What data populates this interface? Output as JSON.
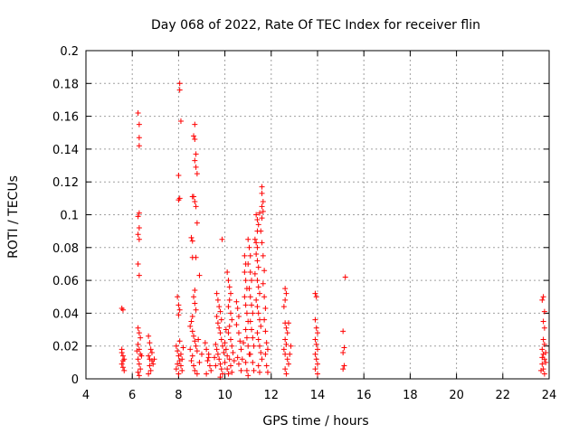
{
  "chart_data": {
    "type": "scatter",
    "title": "Day 068 of 2022, Rate Of TEC Index for receiver flin",
    "xlabel": "GPS time / hours",
    "ylabel": "ROTI / TECUs",
    "xlim": [
      4,
      24
    ],
    "ylim": [
      0,
      0.2
    ],
    "xticks": [
      "4",
      "6",
      "8",
      "10",
      "12",
      "14",
      "16",
      "18",
      "20",
      "22",
      "24"
    ],
    "yticks": [
      "0",
      "0.02",
      "0.04",
      "0.06",
      "0.08",
      "0.1",
      "0.12",
      "0.14",
      "0.16",
      "0.18",
      "0.2"
    ],
    "grid": true,
    "marker": "+",
    "color": "#ff0000",
    "series": [
      {
        "points": [
          [
            5.55,
            0.043
          ],
          [
            5.6,
            0.042
          ],
          [
            5.55,
            0.016
          ],
          [
            5.6,
            0.014
          ],
          [
            5.65,
            0.012
          ],
          [
            5.55,
            0.009
          ],
          [
            5.6,
            0.007
          ],
          [
            5.65,
            0.005
          ],
          [
            5.55,
            0.018
          ],
          [
            5.6,
            0.011
          ],
          [
            6.25,
            0.162
          ],
          [
            6.3,
            0.155
          ],
          [
            6.3,
            0.147
          ],
          [
            6.3,
            0.142
          ],
          [
            6.3,
            0.101
          ],
          [
            6.25,
            0.099
          ],
          [
            6.3,
            0.092
          ],
          [
            6.25,
            0.088
          ],
          [
            6.3,
            0.085
          ],
          [
            6.25,
            0.07
          ],
          [
            6.3,
            0.063
          ],
          [
            6.25,
            0.031
          ],
          [
            6.3,
            0.028
          ],
          [
            6.35,
            0.025
          ],
          [
            6.25,
            0.021
          ],
          [
            6.3,
            0.018
          ],
          [
            6.35,
            0.015
          ],
          [
            6.25,
            0.012
          ],
          [
            6.3,
            0.009
          ],
          [
            6.35,
            0.006
          ],
          [
            6.25,
            0.004
          ],
          [
            6.3,
            0.002
          ],
          [
            6.4,
            0.014
          ],
          [
            6.2,
            0.017
          ],
          [
            6.7,
            0.026
          ],
          [
            6.75,
            0.022
          ],
          [
            6.8,
            0.018
          ],
          [
            6.7,
            0.014
          ],
          [
            6.85,
            0.011
          ],
          [
            6.75,
            0.008
          ],
          [
            6.8,
            0.005
          ],
          [
            6.9,
            0.009
          ],
          [
            6.95,
            0.012
          ],
          [
            6.7,
            0.003
          ],
          [
            6.85,
            0.016
          ],
          [
            6.75,
            0.012
          ],
          [
            8.05,
            0.18
          ],
          [
            8.05,
            0.176
          ],
          [
            8.1,
            0.157
          ],
          [
            8.0,
            0.124
          ],
          [
            8.05,
            0.11
          ],
          [
            8.0,
            0.109
          ],
          [
            7.95,
            0.05
          ],
          [
            8.0,
            0.045
          ],
          [
            8.05,
            0.042
          ],
          [
            8.0,
            0.039
          ],
          [
            7.9,
            0.02
          ],
          [
            7.95,
            0.017
          ],
          [
            8.0,
            0.014
          ],
          [
            8.05,
            0.011
          ],
          [
            8.1,
            0.008
          ],
          [
            8.15,
            0.005
          ],
          [
            8.0,
            0.003
          ],
          [
            7.95,
            0.009
          ],
          [
            8.1,
            0.015
          ],
          [
            8.2,
            0.019
          ],
          [
            8.05,
            0.023
          ],
          [
            8.15,
            0.012
          ],
          [
            7.9,
            0.006
          ],
          [
            8.7,
            0.155
          ],
          [
            8.65,
            0.148
          ],
          [
            8.7,
            0.146
          ],
          [
            8.75,
            0.137
          ],
          [
            8.7,
            0.133
          ],
          [
            8.75,
            0.129
          ],
          [
            8.8,
            0.125
          ],
          [
            8.65,
            0.111
          ],
          [
            8.6,
            0.111
          ],
          [
            8.7,
            0.108
          ],
          [
            8.75,
            0.105
          ],
          [
            8.8,
            0.095
          ],
          [
            8.55,
            0.086
          ],
          [
            8.6,
            0.084
          ],
          [
            8.6,
            0.074
          ],
          [
            8.75,
            0.074
          ],
          [
            8.9,
            0.063
          ],
          [
            8.7,
            0.054
          ],
          [
            8.65,
            0.05
          ],
          [
            8.7,
            0.046
          ],
          [
            8.75,
            0.042
          ],
          [
            8.6,
            0.038
          ],
          [
            8.55,
            0.035
          ],
          [
            8.5,
            0.032
          ],
          [
            8.6,
            0.029
          ],
          [
            8.65,
            0.026
          ],
          [
            8.7,
            0.023
          ],
          [
            8.75,
            0.02
          ],
          [
            8.8,
            0.017
          ],
          [
            8.6,
            0.014
          ],
          [
            8.55,
            0.011
          ],
          [
            8.65,
            0.008
          ],
          [
            8.7,
            0.005
          ],
          [
            8.8,
            0.003
          ],
          [
            8.9,
            0.01
          ],
          [
            9.0,
            0.015
          ],
          [
            8.5,
            0.018
          ],
          [
            8.85,
            0.024
          ],
          [
            9.15,
            0.022
          ],
          [
            9.2,
            0.018
          ],
          [
            9.3,
            0.015
          ],
          [
            9.25,
            0.011
          ],
          [
            9.35,
            0.008
          ],
          [
            9.4,
            0.005
          ],
          [
            9.2,
            0.003
          ],
          [
            9.3,
            0.013
          ],
          [
            9.65,
            0.052
          ],
          [
            9.7,
            0.048
          ],
          [
            9.75,
            0.044
          ],
          [
            9.8,
            0.041
          ],
          [
            9.65,
            0.038
          ],
          [
            9.7,
            0.034
          ],
          [
            9.75,
            0.031
          ],
          [
            9.8,
            0.028
          ],
          [
            9.85,
            0.024
          ],
          [
            9.6,
            0.021
          ],
          [
            9.65,
            0.018
          ],
          [
            9.7,
            0.015
          ],
          [
            9.75,
            0.012
          ],
          [
            9.8,
            0.009
          ],
          [
            9.85,
            0.006
          ],
          [
            9.9,
            0.003
          ],
          [
            9.6,
            0.008
          ],
          [
            9.95,
            0.016
          ],
          [
            9.55,
            0.013
          ],
          [
            9.9,
            0.02
          ],
          [
            9.85,
            0.036
          ],
          [
            9.8,
            0.001
          ],
          [
            9.88,
            0.085
          ],
          [
            10.0,
            0.022
          ],
          [
            10.05,
            0.018
          ],
          [
            10.1,
            0.014
          ],
          [
            10.0,
            0.01
          ],
          [
            10.1,
            0.006
          ],
          [
            10.15,
            0.003
          ],
          [
            10.05,
            0.03
          ],
          [
            10.1,
            0.065
          ],
          [
            10.15,
            0.06
          ],
          [
            10.2,
            0.056
          ],
          [
            10.25,
            0.052
          ],
          [
            10.2,
            0.048
          ],
          [
            10.15,
            0.044
          ],
          [
            10.25,
            0.04
          ],
          [
            10.3,
            0.036
          ],
          [
            10.2,
            0.032
          ],
          [
            10.15,
            0.028
          ],
          [
            10.25,
            0.024
          ],
          [
            10.3,
            0.02
          ],
          [
            10.35,
            0.016
          ],
          [
            10.2,
            0.012
          ],
          [
            10.25,
            0.008
          ],
          [
            10.3,
            0.004
          ],
          [
            10.4,
            0.011
          ],
          [
            10.5,
            0.047
          ],
          [
            10.55,
            0.043
          ],
          [
            10.6,
            0.038
          ],
          [
            10.5,
            0.033
          ],
          [
            10.6,
            0.028
          ],
          [
            10.65,
            0.023
          ],
          [
            10.7,
            0.018
          ],
          [
            10.55,
            0.013
          ],
          [
            10.6,
            0.009
          ],
          [
            10.7,
            0.005
          ],
          [
            10.75,
            0.012
          ],
          [
            10.8,
            0.022
          ],
          [
            10.85,
            0.075
          ],
          [
            10.9,
            0.07
          ],
          [
            10.85,
            0.065
          ],
          [
            10.9,
            0.06
          ],
          [
            10.95,
            0.055
          ],
          [
            10.85,
            0.05
          ],
          [
            10.9,
            0.045
          ],
          [
            10.95,
            0.04
          ],
          [
            11.0,
            0.035
          ],
          [
            10.9,
            0.03
          ],
          [
            10.95,
            0.025
          ],
          [
            11.0,
            0.02
          ],
          [
            11.05,
            0.015
          ],
          [
            10.9,
            0.01
          ],
          [
            10.95,
            0.005
          ],
          [
            11.0,
            0.002
          ],
          [
            11.0,
            0.085
          ],
          [
            11.05,
            0.08
          ],
          [
            11.1,
            0.075
          ],
          [
            11.0,
            0.07
          ],
          [
            11.1,
            0.065
          ],
          [
            11.15,
            0.06
          ],
          [
            11.05,
            0.055
          ],
          [
            11.1,
            0.05
          ],
          [
            11.15,
            0.045
          ],
          [
            11.2,
            0.04
          ],
          [
            11.1,
            0.035
          ],
          [
            11.15,
            0.03
          ],
          [
            11.2,
            0.025
          ],
          [
            11.25,
            0.02
          ],
          [
            11.1,
            0.015
          ],
          [
            11.2,
            0.01
          ],
          [
            11.25,
            0.005
          ],
          [
            11.3,
            0.085
          ],
          [
            11.35,
            0.083
          ],
          [
            11.4,
            0.08
          ],
          [
            11.35,
            0.076
          ],
          [
            11.4,
            0.072
          ],
          [
            11.45,
            0.068
          ],
          [
            11.3,
            0.064
          ],
          [
            11.4,
            0.06
          ],
          [
            11.45,
            0.056
          ],
          [
            11.5,
            0.052
          ],
          [
            11.35,
            0.048
          ],
          [
            11.4,
            0.044
          ],
          [
            11.45,
            0.04
          ],
          [
            11.5,
            0.036
          ],
          [
            11.55,
            0.032
          ],
          [
            11.4,
            0.028
          ],
          [
            11.45,
            0.024
          ],
          [
            11.5,
            0.02
          ],
          [
            11.55,
            0.016
          ],
          [
            11.6,
            0.012
          ],
          [
            11.45,
            0.008
          ],
          [
            11.5,
            0.004
          ],
          [
            11.35,
            0.1
          ],
          [
            11.4,
            0.097
          ],
          [
            11.45,
            0.094
          ],
          [
            11.4,
            0.09
          ],
          [
            11.5,
            0.101
          ],
          [
            11.6,
            0.117
          ],
          [
            11.6,
            0.113
          ],
          [
            11.65,
            0.108
          ],
          [
            11.6,
            0.105
          ],
          [
            11.65,
            0.102
          ],
          [
            11.6,
            0.098
          ],
          [
            11.55,
            0.09
          ],
          [
            11.6,
            0.083
          ],
          [
            11.65,
            0.075
          ],
          [
            11.7,
            0.066
          ],
          [
            11.65,
            0.058
          ],
          [
            11.7,
            0.05
          ],
          [
            11.75,
            0.043
          ],
          [
            11.7,
            0.036
          ],
          [
            11.75,
            0.029
          ],
          [
            11.8,
            0.022
          ],
          [
            11.75,
            0.015
          ],
          [
            11.8,
            0.008
          ],
          [
            11.85,
            0.004
          ],
          [
            11.85,
            0.018
          ],
          [
            12.6,
            0.055
          ],
          [
            12.65,
            0.052
          ],
          [
            12.6,
            0.048
          ],
          [
            12.55,
            0.044
          ],
          [
            12.6,
            0.034
          ],
          [
            12.65,
            0.031
          ],
          [
            12.75,
            0.034
          ],
          [
            12.7,
            0.028
          ],
          [
            12.6,
            0.024
          ],
          [
            12.65,
            0.021
          ],
          [
            12.55,
            0.018
          ],
          [
            12.6,
            0.015
          ],
          [
            12.7,
            0.012
          ],
          [
            12.75,
            0.009
          ],
          [
            12.6,
            0.006
          ],
          [
            12.65,
            0.003
          ],
          [
            12.8,
            0.015
          ],
          [
            12.85,
            0.02
          ],
          [
            13.9,
            0.052
          ],
          [
            13.95,
            0.05
          ],
          [
            13.9,
            0.036
          ],
          [
            13.95,
            0.031
          ],
          [
            14.0,
            0.028
          ],
          [
            13.9,
            0.024
          ],
          [
            13.95,
            0.021
          ],
          [
            14.0,
            0.018
          ],
          [
            13.9,
            0.015
          ],
          [
            13.95,
            0.012
          ],
          [
            14.0,
            0.009
          ],
          [
            13.9,
            0.006
          ],
          [
            14.0,
            0.003
          ],
          [
            15.2,
            0.062
          ],
          [
            15.1,
            0.029
          ],
          [
            15.15,
            0.019
          ],
          [
            15.1,
            0.016
          ],
          [
            15.15,
            0.008
          ],
          [
            15.1,
            0.006
          ],
          [
            23.75,
            0.05
          ],
          [
            23.7,
            0.048
          ],
          [
            23.8,
            0.041
          ],
          [
            23.75,
            0.035
          ],
          [
            23.8,
            0.031
          ],
          [
            23.75,
            0.024
          ],
          [
            23.8,
            0.021
          ],
          [
            23.7,
            0.018
          ],
          [
            23.75,
            0.015
          ],
          [
            23.8,
            0.012
          ],
          [
            23.7,
            0.009
          ],
          [
            23.75,
            0.006
          ],
          [
            23.8,
            0.003
          ],
          [
            23.85,
            0.016
          ],
          [
            23.85,
            0.01
          ],
          [
            23.7,
            0.013
          ],
          [
            23.65,
            0.005
          ]
        ]
      }
    ]
  }
}
